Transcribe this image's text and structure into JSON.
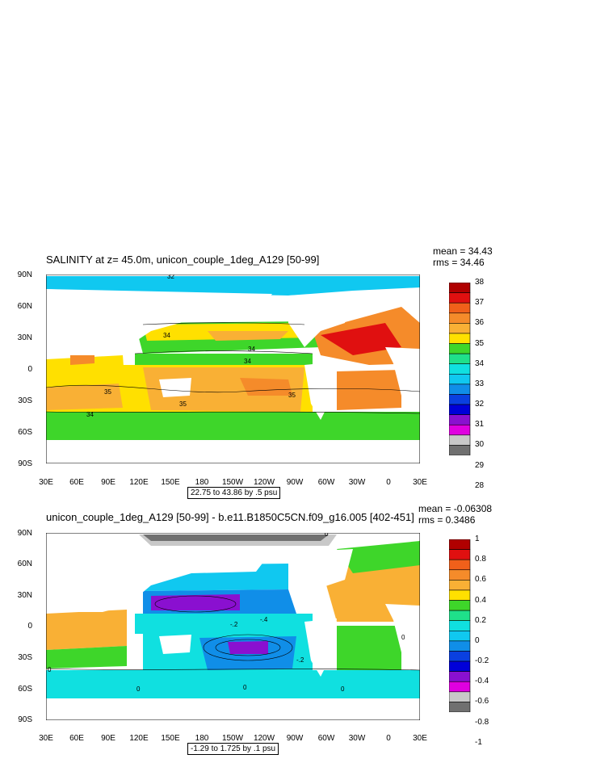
{
  "panels": [
    {
      "title": "SALINITY at z=  45.0m, unicon_couple_1deg_A129 [50-99]",
      "mean": "mean = 34.43",
      "rms": "rms = 34.46",
      "lat_labels": [
        "90N",
        "60N",
        "30N",
        "0",
        "30S",
        "60S",
        "90S"
      ],
      "lon_labels": [
        "30E",
        "60E",
        "90E",
        "120E",
        "150E",
        "180",
        "150W",
        "120W",
        "90W",
        "60W",
        "30W",
        "0",
        "30E"
      ],
      "contour_info": "22.75 to 43.86 by .5 psu",
      "contour_labels": [
        "32",
        "34",
        "34",
        "34",
        "35",
        "35",
        "34",
        "35"
      ],
      "colorbar": {
        "labels": [
          "38",
          "37",
          "36",
          "35",
          "34",
          "33",
          "32",
          "31",
          "30",
          "29",
          "28"
        ],
        "colors": [
          "#b00000",
          "#e01010",
          "#f0601a",
          "#f58b2a",
          "#f9b035",
          "#ffe000",
          "#3ed62a",
          "#1fe08a",
          "#10e0e0",
          "#10c8f0",
          "#108ee8",
          "#0a40e0",
          "#0000d8",
          "#8a10d0",
          "#e000e0",
          "#c8c8c8",
          "#707070"
        ]
      }
    },
    {
      "title": "unicon_couple_1deg_A129 [50-99] - b.e11.B1850C5CN.f09_g16.005 [402-451]",
      "mean": "mean = -0.06308",
      "rms": "rms = 0.3486",
      "lat_labels": [
        "90N",
        "60N",
        "30N",
        "0",
        "30S",
        "60S",
        "90S"
      ],
      "lon_labels": [
        "30E",
        "60E",
        "90E",
        "120E",
        "150E",
        "180",
        "150W",
        "120W",
        "90W",
        "60W",
        "30W",
        "0",
        "30E"
      ],
      "contour_info": "-1.29 to 1.725 by .1 psu",
      "contour_labels": [
        "0",
        "-.2",
        "-.2",
        "0",
        "0",
        "0",
        "0",
        "0",
        "-.4"
      ],
      "colorbar": {
        "labels": [
          "1",
          "0.8",
          "0.6",
          "0.4",
          "0.2",
          "0",
          "-0.2",
          "-0.4",
          "-0.6",
          "-0.8",
          "-1"
        ],
        "colors": [
          "#b00000",
          "#e01010",
          "#f0601a",
          "#f58b2a",
          "#f9b035",
          "#ffe000",
          "#3ed62a",
          "#1fe08a",
          "#10e0e0",
          "#10c8f0",
          "#108ee8",
          "#0a40e0",
          "#0000d8",
          "#8a10d0",
          "#e000e0",
          "#c8c8c8",
          "#707070"
        ]
      }
    }
  ]
}
